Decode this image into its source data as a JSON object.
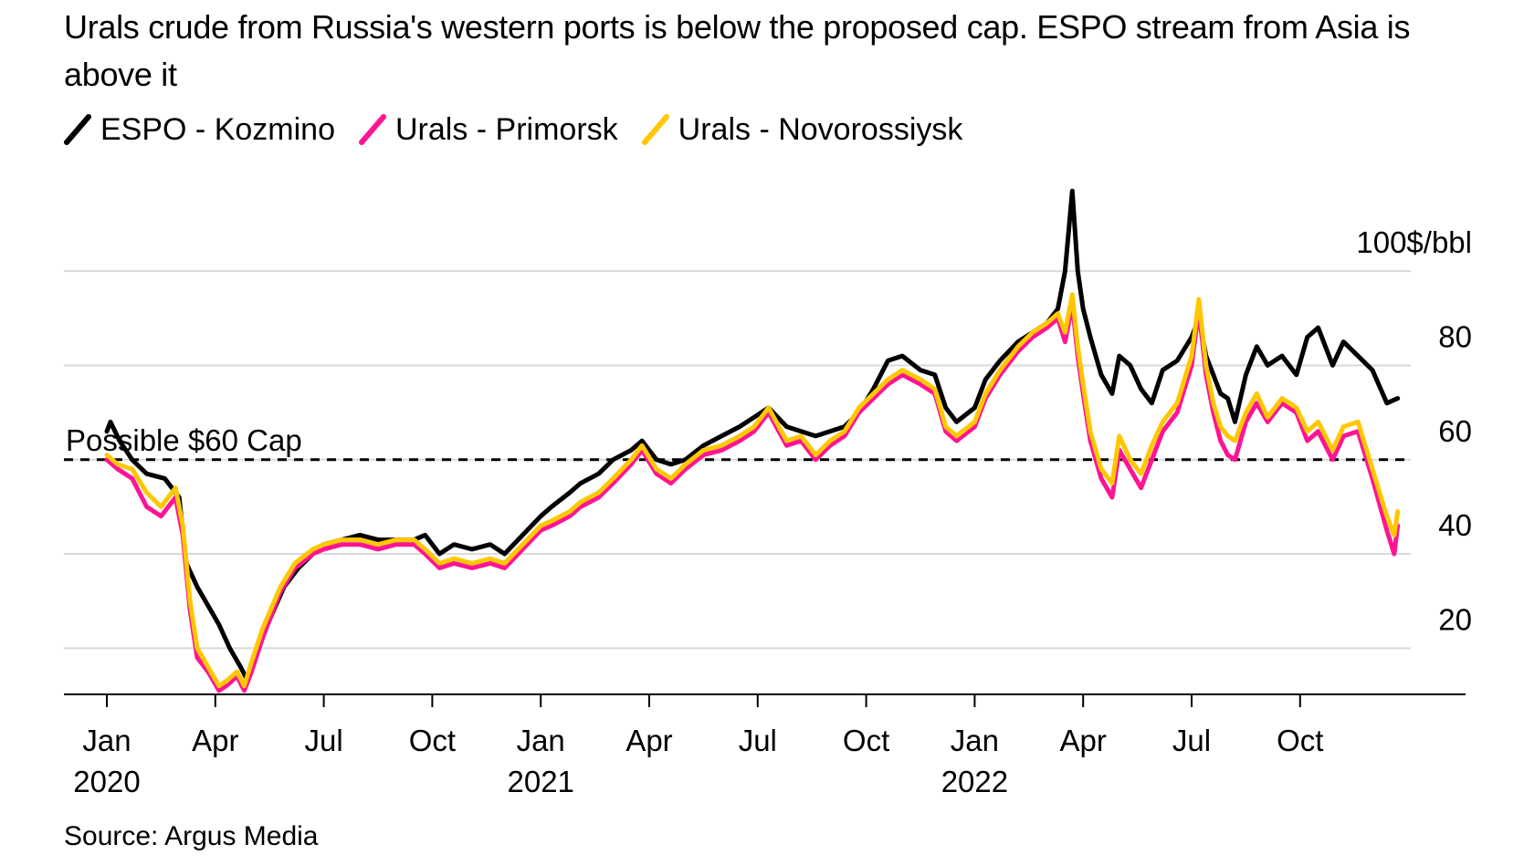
{
  "title": "Urals crude from Russia's western ports is below the proposed cap. ESPO stream from Asia is above it",
  "source": "Source: Argus Media",
  "chart_data": {
    "type": "line",
    "title": "Urals crude from Russia's western ports is below the proposed cap. ESPO stream from Asia is above it",
    "ylabel": "$/bbl",
    "ylim": [
      10,
      100
    ],
    "y_ticks": [
      20,
      40,
      60,
      80,
      100
    ],
    "y_tick_labels": [
      "20",
      "40",
      "60",
      "80",
      "100$/bbl"
    ],
    "x_range": [
      0,
      36
    ],
    "x_ticks": [
      {
        "x": 0,
        "month": "Jan",
        "year": "2020"
      },
      {
        "x": 3,
        "month": "Apr",
        "year": ""
      },
      {
        "x": 6,
        "month": "Jul",
        "year": ""
      },
      {
        "x": 9,
        "month": "Oct",
        "year": ""
      },
      {
        "x": 12,
        "month": "Jan",
        "year": "2021"
      },
      {
        "x": 15,
        "month": "Apr",
        "year": ""
      },
      {
        "x": 18,
        "month": "Jul",
        "year": ""
      },
      {
        "x": 21,
        "month": "Oct",
        "year": ""
      },
      {
        "x": 24,
        "month": "Jan",
        "year": "2022"
      },
      {
        "x": 27,
        "month": "Apr",
        "year": ""
      },
      {
        "x": 30,
        "month": "Jul",
        "year": ""
      },
      {
        "x": 33,
        "month": "Oct",
        "year": ""
      }
    ],
    "reference_line": {
      "value": 60,
      "label": "Possible $60 Cap",
      "style": "dashed"
    },
    "series": [
      {
        "name": "ESPO - Kozmino",
        "color": "#000000",
        "points": [
          [
            0,
            66
          ],
          [
            0.1,
            68
          ],
          [
            0.35,
            64
          ],
          [
            0.7,
            60
          ],
          [
            1.1,
            57
          ],
          [
            1.6,
            56
          ],
          [
            2.0,
            52
          ],
          [
            2.2,
            38
          ],
          [
            2.5,
            33
          ],
          [
            2.8,
            29
          ],
          [
            3.1,
            25
          ],
          [
            3.4,
            20
          ],
          [
            3.7,
            16
          ],
          [
            3.9,
            13
          ],
          [
            4.1,
            19
          ],
          [
            4.5,
            26
          ],
          [
            4.9,
            33
          ],
          [
            5.3,
            37
          ],
          [
            5.7,
            40
          ],
          [
            6.0,
            42
          ],
          [
            6.5,
            43
          ],
          [
            7.0,
            44
          ],
          [
            7.5,
            43
          ],
          [
            8.0,
            43
          ],
          [
            8.5,
            43
          ],
          [
            8.8,
            44
          ],
          [
            9.2,
            40
          ],
          [
            9.6,
            42
          ],
          [
            10.1,
            41
          ],
          [
            10.6,
            42
          ],
          [
            11.0,
            40
          ],
          [
            11.5,
            44
          ],
          [
            12.0,
            48
          ],
          [
            12.3,
            50
          ],
          [
            12.8,
            53
          ],
          [
            13.1,
            55
          ],
          [
            13.6,
            57
          ],
          [
            14.0,
            60
          ],
          [
            14.5,
            62
          ],
          [
            14.8,
            64
          ],
          [
            15.2,
            60
          ],
          [
            15.6,
            59
          ],
          [
            16.0,
            60
          ],
          [
            16.5,
            63
          ],
          [
            17.0,
            65
          ],
          [
            17.5,
            67
          ],
          [
            17.9,
            69
          ],
          [
            18.3,
            71
          ],
          [
            18.8,
            67
          ],
          [
            19.2,
            66
          ],
          [
            19.6,
            65
          ],
          [
            20.0,
            66
          ],
          [
            20.4,
            67
          ],
          [
            20.8,
            70
          ],
          [
            21.2,
            75
          ],
          [
            21.6,
            81
          ],
          [
            22.0,
            82
          ],
          [
            22.5,
            79
          ],
          [
            22.9,
            78
          ],
          [
            23.2,
            71
          ],
          [
            23.5,
            68
          ],
          [
            24.0,
            71
          ],
          [
            24.3,
            77
          ],
          [
            24.7,
            81
          ],
          [
            25.2,
            85
          ],
          [
            25.6,
            87
          ],
          [
            26.0,
            89
          ],
          [
            26.3,
            92
          ],
          [
            26.5,
            100
          ],
          [
            26.7,
            117
          ],
          [
            26.85,
            100
          ],
          [
            27.0,
            92
          ],
          [
            27.2,
            86
          ],
          [
            27.5,
            78
          ],
          [
            27.8,
            74
          ],
          [
            28.0,
            82
          ],
          [
            28.3,
            80
          ],
          [
            28.6,
            75
          ],
          [
            28.9,
            72
          ],
          [
            29.2,
            79
          ],
          [
            29.6,
            81
          ],
          [
            30.0,
            86
          ],
          [
            30.2,
            90
          ],
          [
            30.4,
            82
          ],
          [
            30.6,
            78
          ],
          [
            30.8,
            74
          ],
          [
            31.0,
            73
          ],
          [
            31.2,
            68
          ],
          [
            31.5,
            78
          ],
          [
            31.8,
            84
          ],
          [
            32.1,
            80
          ],
          [
            32.5,
            82
          ],
          [
            32.9,
            78
          ],
          [
            33.2,
            86
          ],
          [
            33.5,
            88
          ],
          [
            33.9,
            80
          ],
          [
            34.2,
            85
          ],
          [
            34.6,
            82
          ],
          [
            35.0,
            79
          ],
          [
            35.4,
            72
          ],
          [
            35.7,
            73
          ]
        ]
      },
      {
        "name": "Urals - Primorsk",
        "color": "#ff1493",
        "points": [
          [
            0,
            60
          ],
          [
            0.3,
            58
          ],
          [
            0.7,
            56
          ],
          [
            1.1,
            50
          ],
          [
            1.5,
            48
          ],
          [
            1.9,
            52
          ],
          [
            2.1,
            44
          ],
          [
            2.3,
            28
          ],
          [
            2.5,
            18
          ],
          [
            2.8,
            15
          ],
          [
            3.1,
            11
          ],
          [
            3.3,
            12
          ],
          [
            3.6,
            14
          ],
          [
            3.8,
            11
          ],
          [
            4.0,
            15
          ],
          [
            4.3,
            22
          ],
          [
            4.8,
            32
          ],
          [
            5.2,
            37
          ],
          [
            5.7,
            40
          ],
          [
            6.0,
            41
          ],
          [
            6.5,
            42
          ],
          [
            7.0,
            42
          ],
          [
            7.5,
            41
          ],
          [
            8.0,
            42
          ],
          [
            8.5,
            42
          ],
          [
            8.8,
            40
          ],
          [
            9.2,
            37
          ],
          [
            9.6,
            38
          ],
          [
            10.1,
            37
          ],
          [
            10.6,
            38
          ],
          [
            11.0,
            37
          ],
          [
            11.5,
            41
          ],
          [
            12.0,
            45
          ],
          [
            12.3,
            46
          ],
          [
            12.8,
            48
          ],
          [
            13.1,
            50
          ],
          [
            13.6,
            52
          ],
          [
            14.0,
            55
          ],
          [
            14.5,
            59
          ],
          [
            14.8,
            62
          ],
          [
            15.2,
            57
          ],
          [
            15.6,
            55
          ],
          [
            16.0,
            58
          ],
          [
            16.5,
            61
          ],
          [
            17.0,
            62
          ],
          [
            17.5,
            64
          ],
          [
            17.9,
            66
          ],
          [
            18.3,
            70
          ],
          [
            18.8,
            63
          ],
          [
            19.2,
            64
          ],
          [
            19.6,
            60
          ],
          [
            20.0,
            63
          ],
          [
            20.4,
            65
          ],
          [
            20.8,
            70
          ],
          [
            21.2,
            73
          ],
          [
            21.6,
            76
          ],
          [
            22.0,
            78
          ],
          [
            22.5,
            76
          ],
          [
            22.9,
            74
          ],
          [
            23.2,
            66
          ],
          [
            23.5,
            64
          ],
          [
            24.0,
            67
          ],
          [
            24.3,
            73
          ],
          [
            24.7,
            78
          ],
          [
            25.2,
            83
          ],
          [
            25.6,
            86
          ],
          [
            26.0,
            88
          ],
          [
            26.3,
            90
          ],
          [
            26.5,
            85
          ],
          [
            26.7,
            93
          ],
          [
            26.85,
            82
          ],
          [
            27.0,
            74
          ],
          [
            27.2,
            64
          ],
          [
            27.5,
            56
          ],
          [
            27.8,
            52
          ],
          [
            28.0,
            62
          ],
          [
            28.3,
            58
          ],
          [
            28.6,
            54
          ],
          [
            28.9,
            60
          ],
          [
            29.2,
            66
          ],
          [
            29.6,
            70
          ],
          [
            30.0,
            80
          ],
          [
            30.2,
            92
          ],
          [
            30.4,
            78
          ],
          [
            30.6,
            70
          ],
          [
            30.8,
            64
          ],
          [
            31.0,
            61
          ],
          [
            31.2,
            60
          ],
          [
            31.5,
            68
          ],
          [
            31.8,
            72
          ],
          [
            32.1,
            68
          ],
          [
            32.5,
            72
          ],
          [
            32.9,
            70
          ],
          [
            33.2,
            64
          ],
          [
            33.5,
            66
          ],
          [
            33.9,
            60
          ],
          [
            34.2,
            65
          ],
          [
            34.6,
            66
          ],
          [
            35.0,
            56
          ],
          [
            35.4,
            45
          ],
          [
            35.6,
            40
          ],
          [
            35.7,
            46
          ]
        ]
      },
      {
        "name": "Urals - Novorossiysk",
        "color": "#ffc700",
        "points": [
          [
            0,
            61
          ],
          [
            0.3,
            59
          ],
          [
            0.7,
            58
          ],
          [
            1.1,
            53
          ],
          [
            1.5,
            50
          ],
          [
            1.9,
            54
          ],
          [
            2.1,
            46
          ],
          [
            2.3,
            30
          ],
          [
            2.5,
            20
          ],
          [
            2.8,
            16
          ],
          [
            3.1,
            12
          ],
          [
            3.3,
            13
          ],
          [
            3.6,
            15
          ],
          [
            3.8,
            12
          ],
          [
            4.0,
            17
          ],
          [
            4.3,
            24
          ],
          [
            4.8,
            33
          ],
          [
            5.2,
            38
          ],
          [
            5.7,
            41
          ],
          [
            6.0,
            42
          ],
          [
            6.5,
            43
          ],
          [
            7.0,
            43
          ],
          [
            7.5,
            42
          ],
          [
            8.0,
            43
          ],
          [
            8.5,
            43
          ],
          [
            8.8,
            41
          ],
          [
            9.2,
            38
          ],
          [
            9.6,
            39
          ],
          [
            10.1,
            38
          ],
          [
            10.6,
            39
          ],
          [
            11.0,
            38
          ],
          [
            11.5,
            42
          ],
          [
            12.0,
            46
          ],
          [
            12.3,
            47
          ],
          [
            12.8,
            49
          ],
          [
            13.1,
            51
          ],
          [
            13.6,
            53
          ],
          [
            14.0,
            56
          ],
          [
            14.5,
            60
          ],
          [
            14.8,
            63
          ],
          [
            15.2,
            58
          ],
          [
            15.6,
            56
          ],
          [
            16.0,
            59
          ],
          [
            16.5,
            62
          ],
          [
            17.0,
            63
          ],
          [
            17.5,
            65
          ],
          [
            17.9,
            67
          ],
          [
            18.3,
            71
          ],
          [
            18.8,
            64
          ],
          [
            19.2,
            65
          ],
          [
            19.6,
            61
          ],
          [
            20.0,
            64
          ],
          [
            20.4,
            66
          ],
          [
            20.8,
            71
          ],
          [
            21.2,
            74
          ],
          [
            21.6,
            77
          ],
          [
            22.0,
            79
          ],
          [
            22.5,
            77
          ],
          [
            22.9,
            75
          ],
          [
            23.2,
            67
          ],
          [
            23.5,
            65
          ],
          [
            24.0,
            68
          ],
          [
            24.3,
            74
          ],
          [
            24.7,
            79
          ],
          [
            25.2,
            84
          ],
          [
            25.6,
            87
          ],
          [
            26.0,
            89
          ],
          [
            26.3,
            91
          ],
          [
            26.5,
            87
          ],
          [
            26.7,
            95
          ],
          [
            26.85,
            84
          ],
          [
            27.0,
            76
          ],
          [
            27.2,
            66
          ],
          [
            27.5,
            58
          ],
          [
            27.8,
            55
          ],
          [
            28.0,
            65
          ],
          [
            28.3,
            60
          ],
          [
            28.6,
            57
          ],
          [
            28.9,
            63
          ],
          [
            29.2,
            68
          ],
          [
            29.6,
            72
          ],
          [
            30.0,
            82
          ],
          [
            30.2,
            94
          ],
          [
            30.4,
            80
          ],
          [
            30.6,
            72
          ],
          [
            30.8,
            67
          ],
          [
            31.0,
            65
          ],
          [
            31.2,
            64
          ],
          [
            31.5,
            70
          ],
          [
            31.8,
            74
          ],
          [
            32.1,
            69
          ],
          [
            32.5,
            73
          ],
          [
            32.9,
            71
          ],
          [
            33.2,
            66
          ],
          [
            33.5,
            68
          ],
          [
            33.9,
            62
          ],
          [
            34.2,
            67
          ],
          [
            34.6,
            68
          ],
          [
            35.0,
            58
          ],
          [
            35.4,
            48
          ],
          [
            35.6,
            44
          ],
          [
            35.7,
            49
          ]
        ]
      }
    ]
  }
}
